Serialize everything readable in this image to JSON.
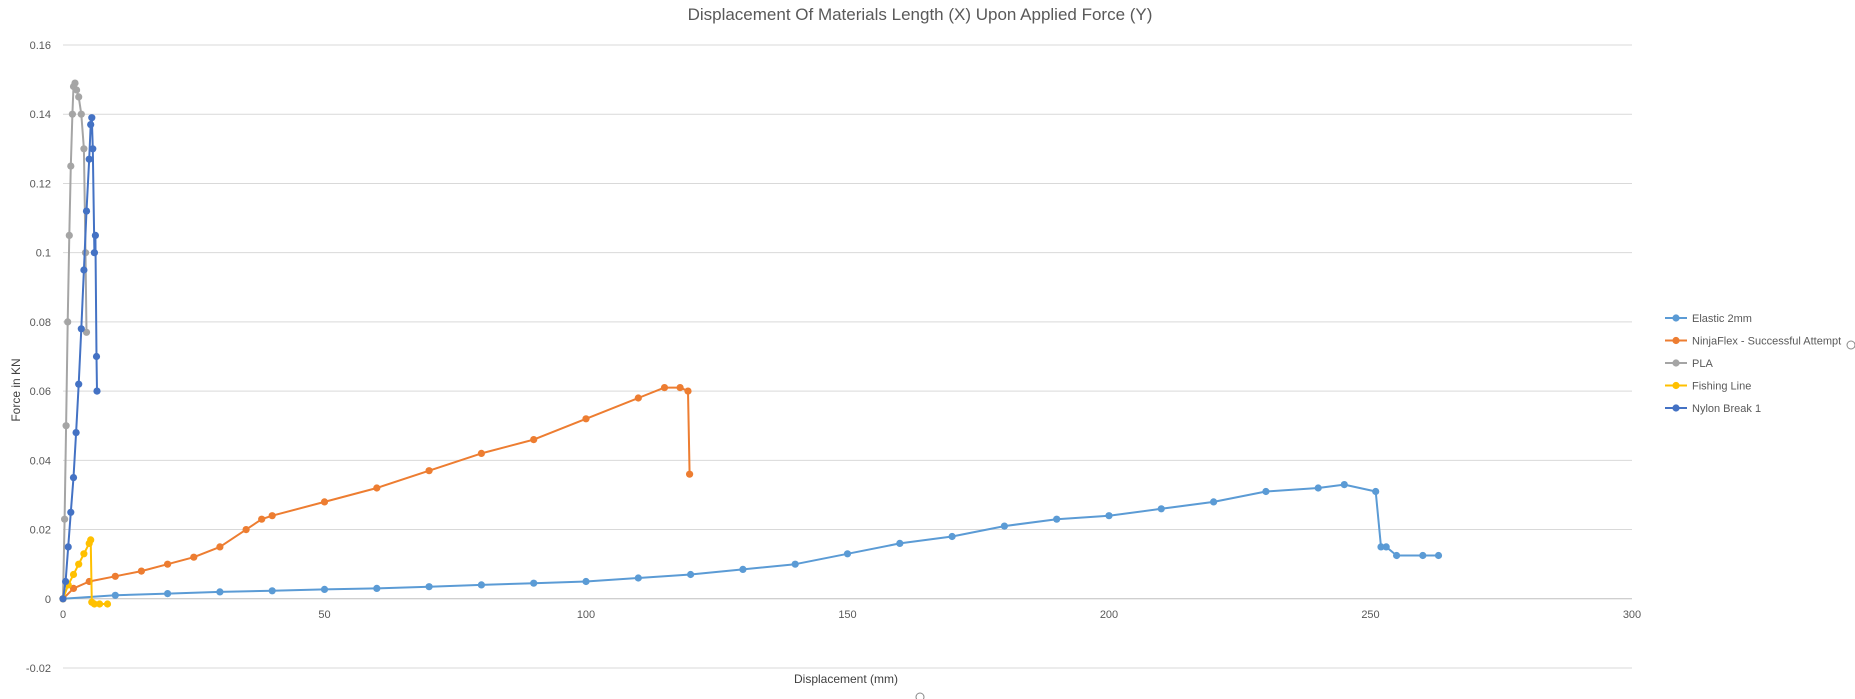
{
  "chart_data": {
    "type": "scatter",
    "title": "Displacement Of Materials Length (X) Upon Applied Force (Y)",
    "xlabel": "Displacement (mm)",
    "ylabel": "Force in KN",
    "xlim": [
      0,
      300
    ],
    "ylim": [
      -0.02,
      0.16
    ],
    "xticks": [
      "0",
      "50",
      "100",
      "150",
      "200",
      "250",
      "300"
    ],
    "yticks": [
      "-0.02",
      "0",
      "0.02",
      "0.04",
      "0.06",
      "0.08",
      "0.1",
      "0.12",
      "0.14",
      "0.16"
    ],
    "grid": true,
    "legend_position": "right",
    "series": [
      {
        "name": "Elastic 2mm",
        "color": "#5b9bd5",
        "x": [
          0,
          10,
          20,
          30,
          40,
          50,
          60,
          70,
          80,
          90,
          100,
          110,
          120,
          130,
          140,
          150,
          160,
          170,
          180,
          190,
          200,
          210,
          220,
          230,
          240,
          245,
          251,
          252,
          253,
          255,
          260,
          263
        ],
        "y": [
          0,
          0.001,
          0.0015,
          0.002,
          0.0023,
          0.0027,
          0.003,
          0.0035,
          0.004,
          0.0045,
          0.005,
          0.006,
          0.007,
          0.0085,
          0.01,
          0.013,
          0.016,
          0.018,
          0.021,
          0.023,
          0.024,
          0.026,
          0.028,
          0.031,
          0.032,
          0.033,
          0.031,
          0.015,
          0.015,
          0.0125,
          0.0125,
          0.0125
        ]
      },
      {
        "name": "NinjaFlex - Successful Attempt",
        "color": "#ed7d31",
        "x": [
          0,
          2,
          5,
          10,
          15,
          20,
          25,
          30,
          35,
          38,
          40,
          50,
          60,
          70,
          80,
          90,
          100,
          110,
          115,
          118,
          119.5,
          119.8
        ],
        "y": [
          0,
          0.003,
          0.005,
          0.0065,
          0.008,
          0.01,
          0.012,
          0.015,
          0.02,
          0.023,
          0.024,
          0.028,
          0.032,
          0.037,
          0.042,
          0.046,
          0.052,
          0.058,
          0.061,
          0.061,
          0.06,
          0.036
        ]
      },
      {
        "name": "PLA",
        "color": "#a5a5a5",
        "x": [
          0,
          0.3,
          0.6,
          0.9,
          1.2,
          1.5,
          1.8,
          2.0,
          2.3,
          2.6,
          3.0,
          3.5,
          4.0,
          4.3,
          4.5
        ],
        "y": [
          0,
          0.023,
          0.05,
          0.08,
          0.105,
          0.125,
          0.14,
          0.148,
          0.149,
          0.147,
          0.145,
          0.14,
          0.13,
          0.1,
          0.077
        ]
      },
      {
        "name": "Fishing Line",
        "color": "#ffc000",
        "x": [
          0,
          1,
          2,
          3,
          4,
          5,
          5.3,
          5.5,
          6,
          7,
          8.5
        ],
        "y": [
          0,
          0.004,
          0.007,
          0.01,
          0.013,
          0.016,
          0.017,
          -0.001,
          -0.0015,
          -0.0015,
          -0.0015
        ]
      },
      {
        "name": "Nylon Break 1",
        "color": "#4472c4",
        "x": [
          0,
          0.5,
          1,
          1.5,
          2,
          2.5,
          3,
          3.5,
          4,
          4.5,
          5,
          5.3,
          5.5,
          5.7,
          6,
          6.2,
          6.4,
          6.5
        ],
        "y": [
          0,
          0.005,
          0.015,
          0.025,
          0.035,
          0.048,
          0.062,
          0.078,
          0.095,
          0.112,
          0.127,
          0.137,
          0.139,
          0.13,
          0.1,
          0.105,
          0.07,
          0.06
        ]
      }
    ]
  }
}
